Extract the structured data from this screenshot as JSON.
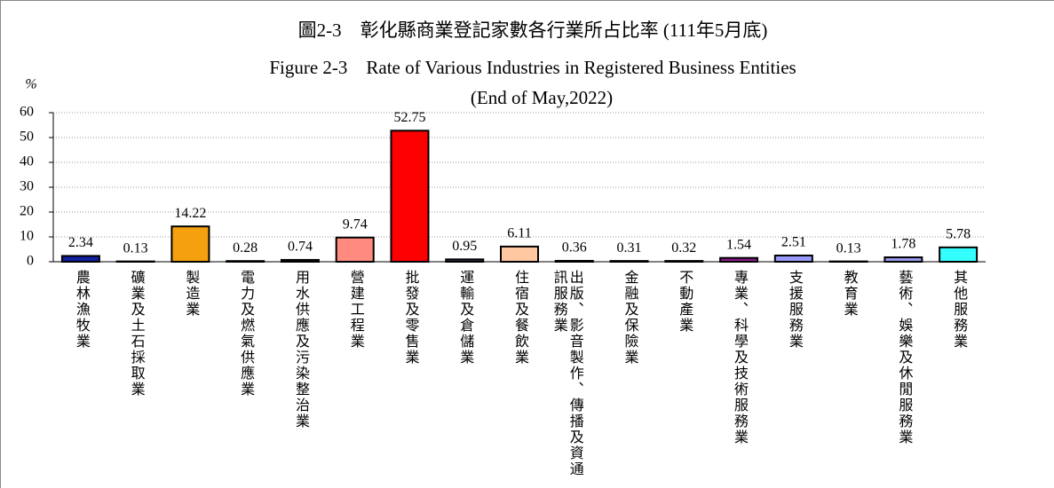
{
  "chart_data": {
    "type": "bar",
    "title": "圖2-3　彰化縣商業登記家數各行業所占比率 (111年5月底)",
    "subtitle": [
      "Figure 2-3　Rate of Various Industries in Registered Business Entities",
      "(End of May,2022)"
    ],
    "y_label": "%",
    "categories": [
      "農林漁牧業",
      "礦業及土石採取業",
      "製造業",
      "電力及燃氣供應業",
      "用水供應及污染整治業",
      "營建工程業",
      "批發及零售業",
      "運輸及倉儲業",
      "住宿及餐飲業",
      "出版、影音製作、傳播及資通訊服務業",
      "金融及保險業",
      "不動產業",
      "專業、科學及技術服務業",
      "支援服務業",
      "教育業",
      "藝術、娛樂及休閒服務業",
      "其他服務業"
    ],
    "values": [
      2.34,
      0.13,
      14.22,
      0.28,
      0.74,
      9.74,
      52.75,
      0.95,
      6.11,
      0.36,
      0.31,
      0.32,
      1.54,
      2.51,
      0.13,
      1.78,
      5.78
    ],
    "colors": [
      "#1020a0",
      "#333333",
      "#f5a00f",
      "#333333",
      "#333333",
      "#ff8a80",
      "#ff0000",
      "#333355",
      "#ffc8a0",
      "#333333",
      "#333333",
      "#333333",
      "#8b1a8b",
      "#9999ff",
      "#333333",
      "#9999ee",
      "#33ffff"
    ],
    "ylim": [
      0,
      60
    ],
    "yticks": [
      0,
      10,
      20,
      30,
      40,
      50,
      60
    ],
    "grid": true
  }
}
